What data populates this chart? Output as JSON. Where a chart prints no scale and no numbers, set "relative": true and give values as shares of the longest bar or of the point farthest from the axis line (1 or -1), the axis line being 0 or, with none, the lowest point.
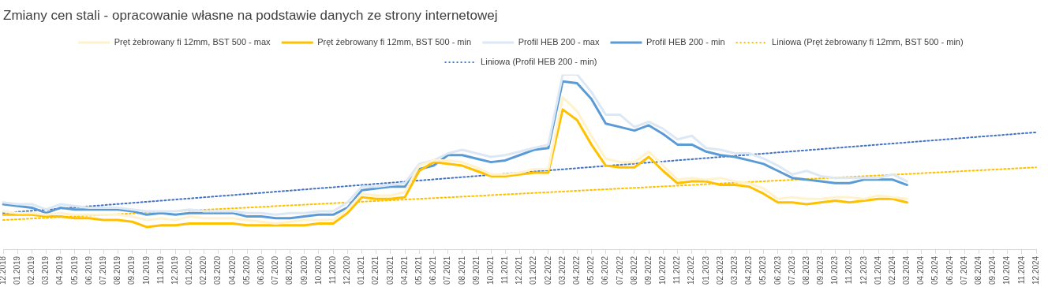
{
  "chart_data": {
    "type": "line",
    "title": "Zmiany cen stali - opracowanie własne na podstawie danych ze strony internetowej",
    "relative": true,
    "legend": "top",
    "grid": false,
    "categories": [
      "12.2018",
      "01.2019",
      "02.2019",
      "03.2019",
      "04.2019",
      "05.2019",
      "06.2019",
      "07.2019",
      "08.2019",
      "09.2019",
      "10.2019",
      "11.2019",
      "12.2019",
      "01.2020",
      "02.2020",
      "03.2020",
      "04.2020",
      "05.2020",
      "06.2020",
      "07.2020",
      "08.2020",
      "09.2020",
      "10.2020",
      "11.2020",
      "12.2020",
      "01.2021",
      "02.2021",
      "03.2021",
      "04.2021",
      "05.2021",
      "06.2021",
      "07.2021",
      "08.2021",
      "09.2021",
      "10.2021",
      "11.2021",
      "12.2021",
      "01.2022",
      "02.2022",
      "03.2022",
      "04.2022",
      "05.2022",
      "06.2022",
      "07.2022",
      "08.2022",
      "09.2022",
      "10.2022",
      "11.2022",
      "12.2022",
      "01.2023",
      "02.2023",
      "03.2023",
      "04.2023",
      "05.2023",
      "06.2023",
      "07.2023",
      "08.2023",
      "09.2023",
      "10.2023",
      "11.2023",
      "12.2023",
      "01.2024",
      "02.2024",
      "03.2024",
      "04.2024",
      "05.2024",
      "06.2024",
      "07.2024",
      "08.2024",
      "09.2024",
      "10.2024",
      "11.2024",
      "12.2024"
    ],
    "series": [
      {
        "name": "Pręt żebrowany fi 12mm, BST 500 - max",
        "color": "#fff2cc",
        "values": [
          0.22,
          0.21,
          0.21,
          0.2,
          0.21,
          0.2,
          0.2,
          0.2,
          0.2,
          0.19,
          0.17,
          0.18,
          0.17,
          0.19,
          0.18,
          0.18,
          0.18,
          0.17,
          0.16,
          0.15,
          0.16,
          0.17,
          0.17,
          0.17,
          0.23,
          0.32,
          0.31,
          0.31,
          0.33,
          0.48,
          0.51,
          0.51,
          0.5,
          0.47,
          0.43,
          0.43,
          0.44,
          0.46,
          0.46,
          0.87,
          0.79,
          0.65,
          0.52,
          0.5,
          0.5,
          0.56,
          0.48,
          0.4,
          0.41,
          0.4,
          0.41,
          0.39,
          0.38,
          0.35,
          0.29,
          0.3,
          0.29,
          0.29,
          0.3,
          0.3,
          0.29,
          0.31,
          0.3,
          0.29,
          null,
          null,
          null,
          null,
          null,
          null,
          null,
          null,
          null
        ]
      },
      {
        "name": "Pręt żebrowany fi 12mm, BST 500 - min",
        "color": "#ffc000",
        "values": [
          0.2,
          0.2,
          0.2,
          0.19,
          0.19,
          0.18,
          0.18,
          0.17,
          0.17,
          0.16,
          0.13,
          0.14,
          0.14,
          0.15,
          0.15,
          0.15,
          0.15,
          0.14,
          0.14,
          0.14,
          0.14,
          0.14,
          0.15,
          0.15,
          0.21,
          0.3,
          0.29,
          0.29,
          0.3,
          0.45,
          0.5,
          0.49,
          0.48,
          0.45,
          0.42,
          0.42,
          0.43,
          0.44,
          0.44,
          0.8,
          0.74,
          0.6,
          0.48,
          0.47,
          0.47,
          0.53,
          0.45,
          0.38,
          0.39,
          0.39,
          0.37,
          0.37,
          0.36,
          0.32,
          0.27,
          0.27,
          0.26,
          0.27,
          0.28,
          0.27,
          0.28,
          0.29,
          0.29,
          0.27,
          null,
          null,
          null,
          null,
          null,
          null,
          null,
          null,
          null
        ]
      },
      {
        "name": "Profil HEB 200 - max",
        "color": "#dde8f5",
        "values": [
          0.27,
          0.26,
          0.26,
          0.23,
          0.26,
          0.25,
          0.24,
          0.24,
          0.24,
          0.23,
          0.22,
          0.22,
          0.22,
          0.23,
          0.22,
          0.22,
          0.22,
          0.21,
          0.21,
          0.2,
          0.21,
          0.21,
          0.22,
          0.22,
          0.27,
          0.36,
          0.36,
          0.37,
          0.38,
          0.49,
          0.51,
          0.55,
          0.57,
          0.55,
          0.53,
          0.54,
          0.56,
          0.58,
          0.6,
          1.0,
          1.0,
          0.9,
          0.77,
          0.77,
          0.7,
          0.73,
          0.69,
          0.63,
          0.65,
          0.58,
          0.57,
          0.55,
          0.55,
          0.52,
          0.48,
          0.43,
          0.45,
          0.42,
          0.41,
          0.41,
          0.41,
          0.41,
          0.43,
          0.39,
          null,
          null,
          null,
          null,
          null,
          null,
          null,
          null,
          null
        ]
      },
      {
        "name": "Profil HEB 200 - min",
        "color": "#5b9bd5",
        "values": [
          0.26,
          0.25,
          0.24,
          0.21,
          0.24,
          0.23,
          0.23,
          0.23,
          0.23,
          0.22,
          0.2,
          0.21,
          0.2,
          0.21,
          0.21,
          0.21,
          0.21,
          0.19,
          0.19,
          0.18,
          0.18,
          0.19,
          0.2,
          0.2,
          0.24,
          0.34,
          0.35,
          0.36,
          0.36,
          0.46,
          0.48,
          0.54,
          0.54,
          0.52,
          0.5,
          0.51,
          0.54,
          0.57,
          0.58,
          0.96,
          0.95,
          0.86,
          0.72,
          0.7,
          0.68,
          0.71,
          0.66,
          0.6,
          0.6,
          0.56,
          0.54,
          0.53,
          0.51,
          0.49,
          0.45,
          0.41,
          0.4,
          0.39,
          0.38,
          0.38,
          0.4,
          0.4,
          0.4,
          0.37,
          null,
          null,
          null,
          null,
          null,
          null,
          null,
          null,
          null
        ]
      },
      {
        "name": "Liniowa (Pręt żebrowany fi 12mm, BST 500 - min)",
        "color": "#ffc000",
        "line_style": "dotted",
        "x": [
          "12.2018",
          "12.2024"
        ],
        "values": [
          0.17,
          0.47
        ]
      },
      {
        "name": "Liniowa (Profil HEB 200 - min)",
        "color": "#4472c4",
        "line_style": "dotted",
        "x": [
          "12.2018",
          "12.2024"
        ],
        "values": [
          0.21,
          0.67
        ]
      }
    ]
  }
}
